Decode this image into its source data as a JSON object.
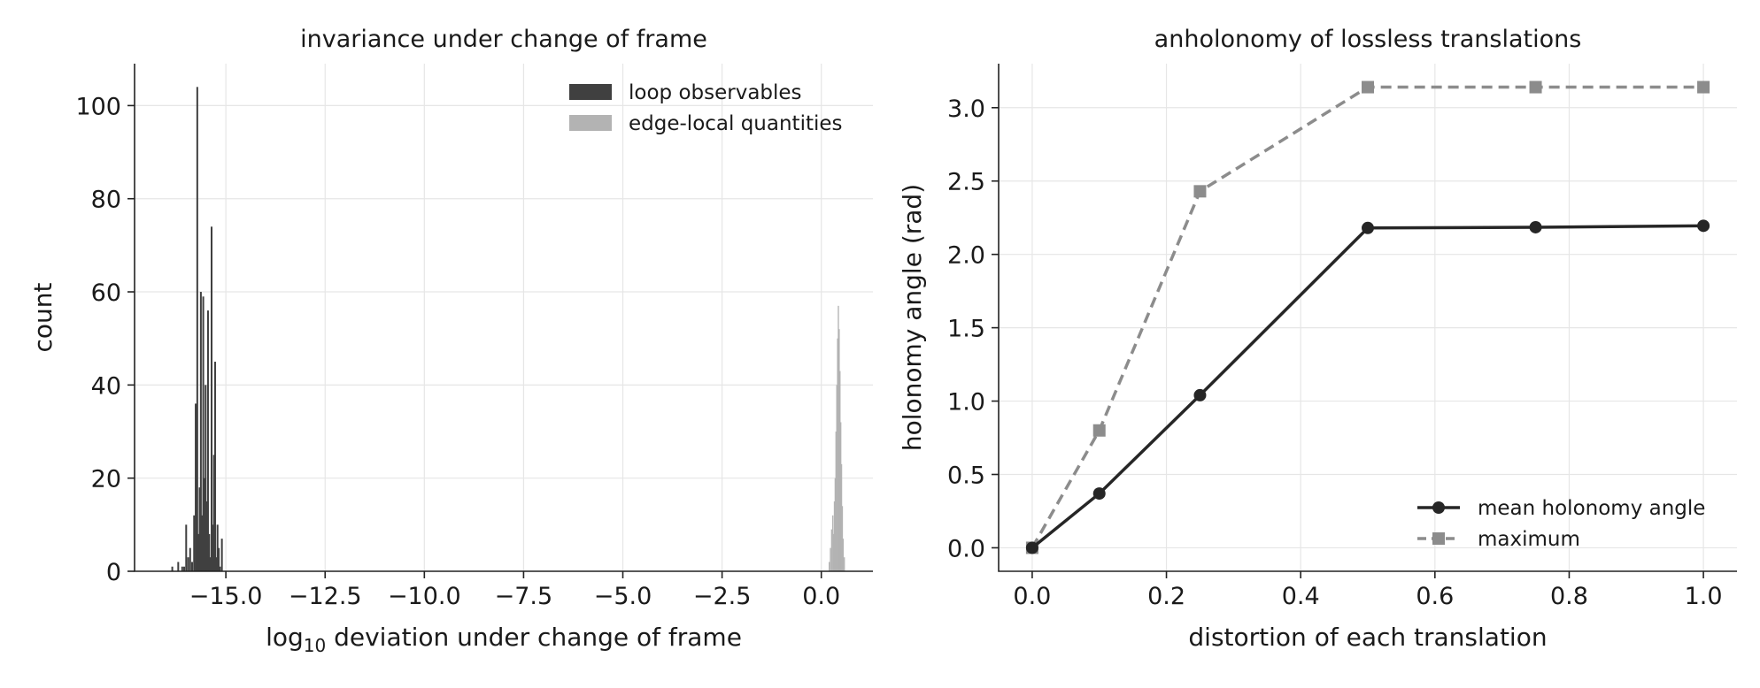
{
  "chart_data": [
    {
      "type": "histogram",
      "title": "invariance under change of frame",
      "xlabel_prefix": "log",
      "xlabel_sub": "10",
      "xlabel_rest": " deviation under change of frame",
      "ylabel": "count",
      "xlim": [
        -17.3,
        1.3
      ],
      "ylim": [
        0,
        109
      ],
      "xticks": [
        -15.0,
        -12.5,
        -10.0,
        -7.5,
        -5.0,
        -2.5,
        0.0
      ],
      "xtick_labels": [
        "−15.0",
        "−12.5",
        "−10.0",
        "−7.5",
        "−5.0",
        "−2.5",
        "0.0"
      ],
      "yticks": [
        0,
        20,
        40,
        60,
        80,
        100
      ],
      "ytick_labels": [
        "0",
        "20",
        "40",
        "60",
        "80",
        "100"
      ],
      "grid": true,
      "legend_position": "top-right",
      "series": [
        {
          "name": "loop observables",
          "color": "#404040",
          "bin_width": 0.045,
          "x": [
            -16.35,
            -16.2,
            -16.1,
            -16.05,
            -16.0,
            -15.95,
            -15.9,
            -15.85,
            -15.8,
            -15.76,
            -15.72,
            -15.69,
            -15.66,
            -15.63,
            -15.6,
            -15.57,
            -15.54,
            -15.51,
            -15.48,
            -15.45,
            -15.42,
            -15.39,
            -15.36,
            -15.33,
            -15.3,
            -15.27,
            -15.24,
            -15.21,
            -15.18,
            -15.15,
            -15.1
          ],
          "values": [
            1,
            2,
            1,
            1,
            10,
            3,
            5,
            2,
            12,
            36,
            104,
            8,
            18,
            60,
            12,
            59,
            20,
            40,
            15,
            56,
            8,
            3,
            74,
            10,
            25,
            45,
            3,
            10,
            5,
            1,
            7
          ]
        },
        {
          "name": "edge-local quantities",
          "color": "#b3b3b3",
          "bin_width": 0.03,
          "x": [
            0.2,
            0.23,
            0.26,
            0.29,
            0.31,
            0.33,
            0.35,
            0.37,
            0.39,
            0.41,
            0.43,
            0.45,
            0.47,
            0.49,
            0.51,
            0.53,
            0.55,
            0.58
          ],
          "values": [
            2,
            5,
            9,
            12,
            8,
            15,
            20,
            30,
            40,
            50,
            57,
            52,
            43,
            32,
            23,
            14,
            7,
            3
          ]
        }
      ]
    },
    {
      "type": "line",
      "title": "anholonomy of lossless translations",
      "xlabel": "distortion of each translation",
      "ylabel": "holonomy angle (rad)",
      "xlim": [
        -0.05,
        1.05
      ],
      "ylim": [
        -0.16,
        3.3
      ],
      "xticks": [
        0.0,
        0.2,
        0.4,
        0.6,
        0.8,
        1.0
      ],
      "xtick_labels": [
        "0.0",
        "0.2",
        "0.4",
        "0.6",
        "0.8",
        "1.0"
      ],
      "yticks": [
        0.0,
        0.5,
        1.0,
        1.5,
        2.0,
        2.5,
        3.0
      ],
      "ytick_labels": [
        "0.0",
        "0.5",
        "1.0",
        "1.5",
        "2.0",
        "2.5",
        "3.0"
      ],
      "grid": true,
      "legend_position": "bottom-right",
      "x": [
        0.0,
        0.1,
        0.25,
        0.5,
        0.75,
        1.0
      ],
      "series": [
        {
          "name": "mean holonomy angle",
          "color": "#262626",
          "style": "solid",
          "marker": "circle",
          "values": [
            0.0,
            0.37,
            1.04,
            2.18,
            2.185,
            2.195
          ]
        },
        {
          "name": "maximum",
          "color": "#8c8c8c",
          "style": "dashed",
          "marker": "square",
          "values": [
            0.0,
            0.8,
            2.43,
            3.14,
            3.14,
            3.14
          ]
        }
      ]
    }
  ]
}
